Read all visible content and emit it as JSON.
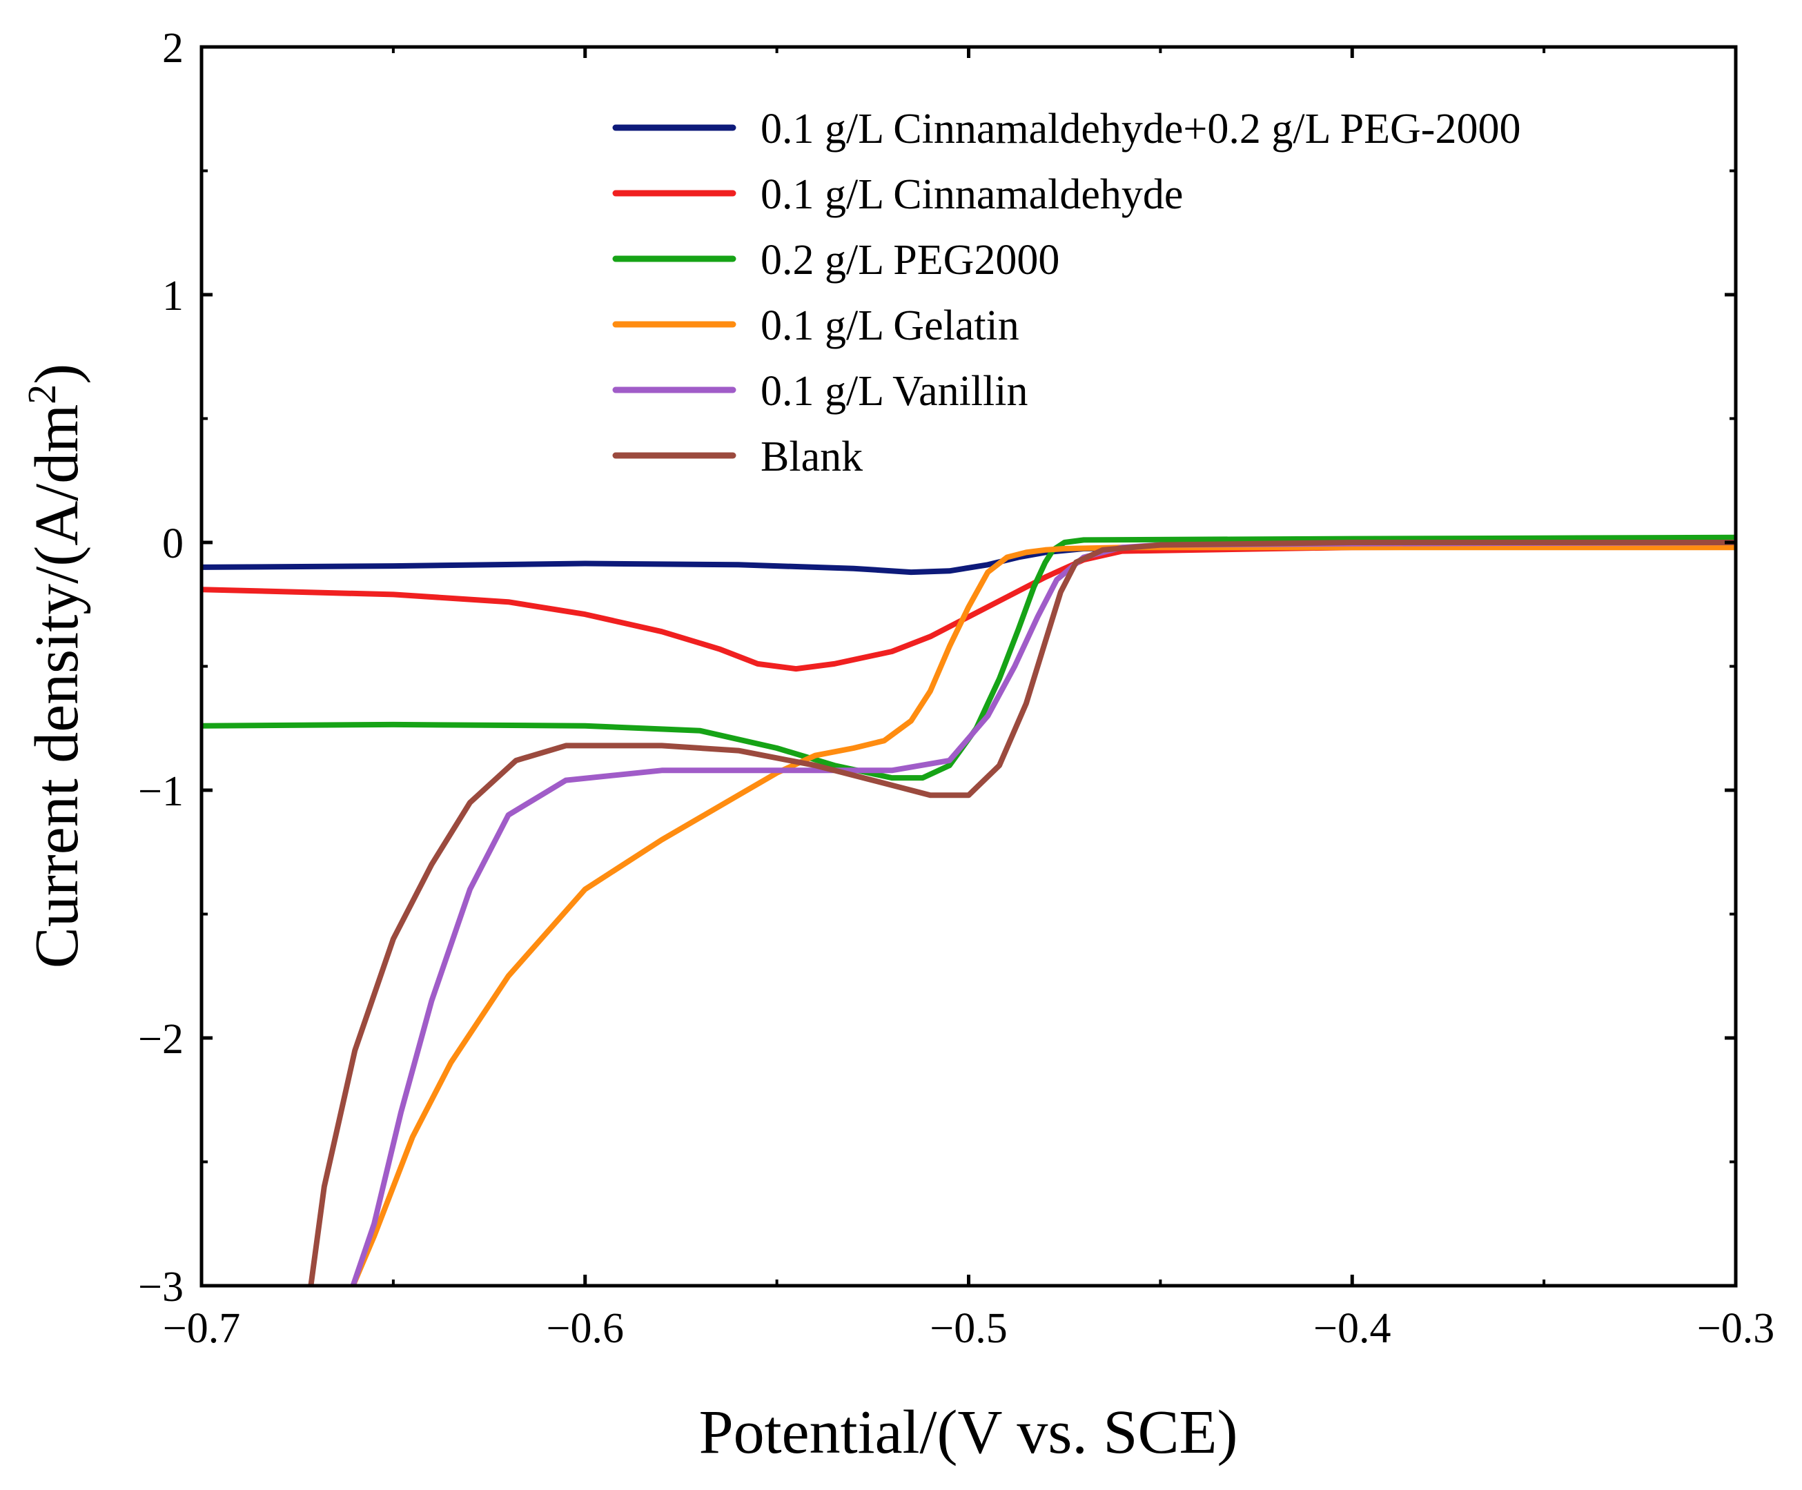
{
  "chart_data": {
    "type": "line",
    "title": "",
    "xlabel": "Potential/(V vs. SCE)",
    "ylabel": "Current density/(A/dm²)",
    "ylabel_parts": {
      "prefix": "Current density/(A/dm",
      "superscript": "2",
      "suffix": ")"
    },
    "xlim": [
      -0.7,
      -0.3
    ],
    "ylim": [
      -3,
      2
    ],
    "xticks": [
      -0.7,
      -0.6,
      -0.5,
      -0.4,
      -0.3
    ],
    "xtick_labels": [
      "−0.7",
      "−0.6",
      "−0.5",
      "−0.4",
      "−0.3"
    ],
    "yticks": [
      -3,
      -2,
      -1,
      0,
      1,
      2
    ],
    "ytick_labels": [
      "−3",
      "−2",
      "−1",
      "0",
      "1",
      "2"
    ],
    "x_minor_step": 0.05,
    "y_minor_step": 0.5,
    "grid": false,
    "legend_position": "top-right",
    "series": [
      {
        "name": "0.1 g/L Cinnamaldehyde+0.2 g/L PEG-2000",
        "color": "#0d1a7a",
        "x": [
          -0.7,
          -0.65,
          -0.6,
          -0.56,
          -0.53,
          -0.515,
          -0.505,
          -0.495,
          -0.487,
          -0.48,
          -0.47,
          -0.4,
          -0.3
        ],
        "y": [
          -0.1,
          -0.095,
          -0.085,
          -0.09,
          -0.105,
          -0.12,
          -0.115,
          -0.09,
          -0.06,
          -0.04,
          -0.025,
          -0.015,
          -0.01
        ]
      },
      {
        "name": "0.1 g/L Cinnamaldehyde",
        "color": "#f02020",
        "x": [
          -0.7,
          -0.65,
          -0.62,
          -0.6,
          -0.58,
          -0.565,
          -0.555,
          -0.545,
          -0.535,
          -0.52,
          -0.51,
          -0.5,
          -0.49,
          -0.48,
          -0.47,
          -0.46,
          -0.4,
          -0.3
        ],
        "y": [
          -0.19,
          -0.21,
          -0.24,
          -0.29,
          -0.36,
          -0.43,
          -0.49,
          -0.51,
          -0.49,
          -0.44,
          -0.38,
          -0.3,
          -0.22,
          -0.14,
          -0.07,
          -0.035,
          -0.02,
          -0.015
        ]
      },
      {
        "name": "0.2 g/L PEG2000",
        "color": "#16a316",
        "x": [
          -0.7,
          -0.65,
          -0.6,
          -0.57,
          -0.55,
          -0.535,
          -0.52,
          -0.512,
          -0.505,
          -0.498,
          -0.492,
          -0.487,
          -0.483,
          -0.48,
          -0.478,
          -0.475,
          -0.47,
          -0.4,
          -0.3
        ],
        "y": [
          -0.74,
          -0.735,
          -0.74,
          -0.76,
          -0.83,
          -0.9,
          -0.95,
          -0.95,
          -0.9,
          -0.75,
          -0.55,
          -0.35,
          -0.18,
          -0.08,
          -0.03,
          0.0,
          0.01,
          0.015,
          0.02
        ]
      },
      {
        "name": "0.1 g/L Gelatin",
        "color": "#ff8c10",
        "x": [
          -0.6605,
          -0.655,
          -0.645,
          -0.635,
          -0.62,
          -0.6,
          -0.58,
          -0.56,
          -0.55,
          -0.54,
          -0.53,
          -0.522,
          -0.515,
          -0.51,
          -0.505,
          -0.5,
          -0.495,
          -0.49,
          -0.485,
          -0.48,
          -0.475,
          -0.46,
          -0.4,
          -0.3
        ],
        "y": [
          -3.0,
          -2.8,
          -2.4,
          -2.1,
          -1.75,
          -1.4,
          -1.2,
          -1.02,
          -0.93,
          -0.86,
          -0.83,
          -0.8,
          -0.72,
          -0.6,
          -0.42,
          -0.26,
          -0.12,
          -0.06,
          -0.04,
          -0.03,
          -0.025,
          -0.02,
          -0.02,
          -0.02
        ]
      },
      {
        "name": "0.1 g/L Vanillin",
        "color": "#a05cc8",
        "x": [
          -0.6605,
          -0.655,
          -0.648,
          -0.64,
          -0.63,
          -0.62,
          -0.605,
          -0.58,
          -0.55,
          -0.52,
          -0.505,
          -0.495,
          -0.488,
          -0.482,
          -0.477,
          -0.47,
          -0.46,
          -0.45,
          -0.4,
          -0.3
        ],
        "y": [
          -3.0,
          -2.75,
          -2.3,
          -1.85,
          -1.4,
          -1.1,
          -0.96,
          -0.92,
          -0.92,
          -0.92,
          -0.88,
          -0.7,
          -0.5,
          -0.3,
          -0.15,
          -0.06,
          -0.02,
          -0.01,
          -0.005,
          0.0
        ]
      },
      {
        "name": "Blank",
        "color": "#9b4a3e",
        "x": [
          -0.6715,
          -0.668,
          -0.66,
          -0.65,
          -0.64,
          -0.63,
          -0.618,
          -0.605,
          -0.58,
          -0.56,
          -0.54,
          -0.525,
          -0.51,
          -0.5,
          -0.492,
          -0.485,
          -0.48,
          -0.476,
          -0.472,
          -0.465,
          -0.45,
          -0.4,
          -0.3
        ],
        "y": [
          -3.0,
          -2.6,
          -2.05,
          -1.6,
          -1.3,
          -1.05,
          -0.88,
          -0.82,
          -0.82,
          -0.84,
          -0.9,
          -0.96,
          -1.02,
          -1.02,
          -0.9,
          -0.65,
          -0.4,
          -0.2,
          -0.08,
          -0.03,
          -0.01,
          0.0,
          0.0
        ]
      }
    ]
  }
}
